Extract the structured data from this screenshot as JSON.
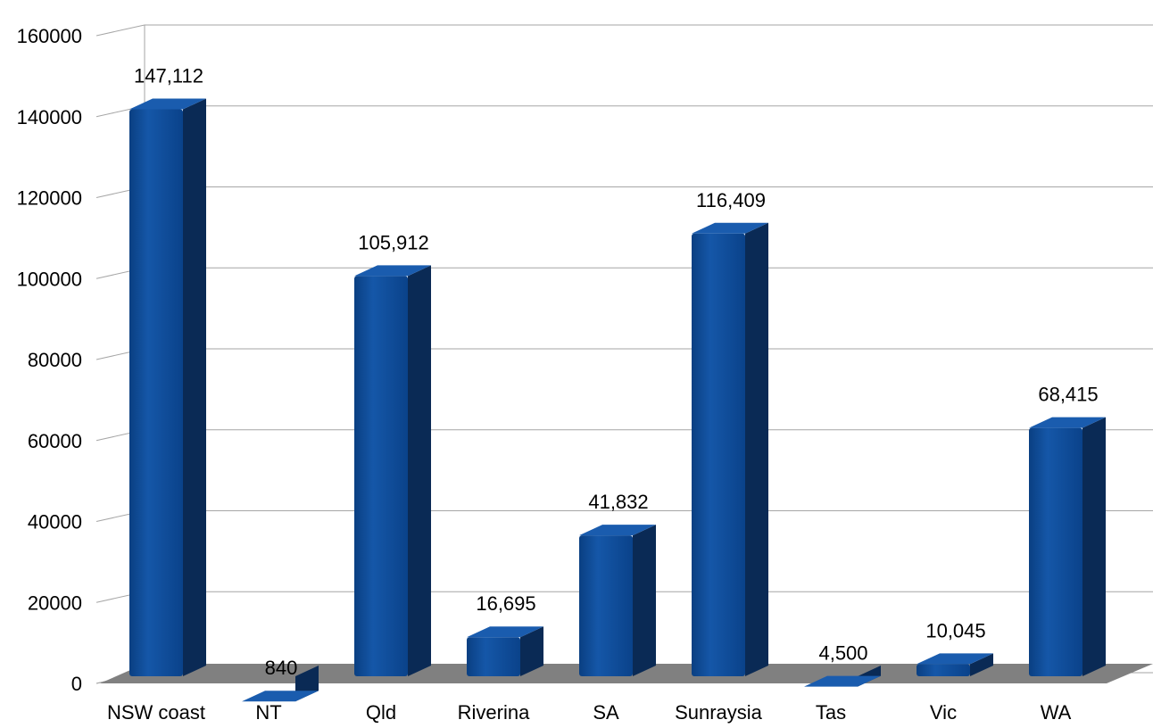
{
  "chart_data": {
    "type": "bar",
    "style": "3d",
    "title": "",
    "xlabel": "",
    "ylabel": "",
    "categories": [
      "NSW coast",
      "NT",
      "Qld",
      "Riverina",
      "SA",
      "Sunraysia",
      "Tas",
      "Vic",
      "WA"
    ],
    "values": [
      147112,
      840,
      105912,
      16695,
      41832,
      116409,
      4500,
      10045,
      68415
    ],
    "data_labels": [
      "147,112",
      "840",
      "105,912",
      "16,695",
      "41,832",
      "116,409",
      "4,500",
      "10,045",
      "68,415"
    ],
    "yticks": [
      0,
      20000,
      40000,
      60000,
      80000,
      100000,
      120000,
      140000,
      160000
    ],
    "ytick_labels": [
      "0",
      "20000",
      "40000",
      "60000",
      "80000",
      "100000",
      "120000",
      "140000",
      "160000"
    ],
    "ylim": [
      0,
      160000
    ],
    "grid": true,
    "legend": "none",
    "colors": {
      "bar_front": "#0a4a96",
      "bar_side": "#0a2a55",
      "bar_top": "#1a5cae",
      "floor": "#808080",
      "grid": "#a6a6a6"
    }
  }
}
